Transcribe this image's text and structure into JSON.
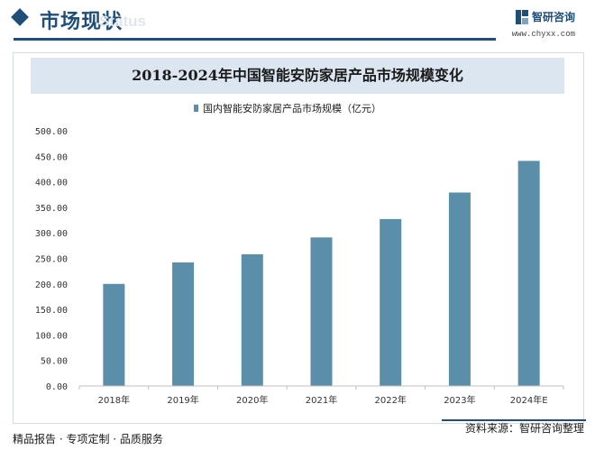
{
  "header": {
    "section_title": "市场现状",
    "section_watermark": "Status",
    "brand_name": "智研咨询",
    "brand_url": "www.chyxx.com"
  },
  "chart_data": {
    "type": "bar",
    "title": "2018-2024年中国智能安防家居产品市场规模变化",
    "categories": [
      "2018年",
      "2019年",
      "2020年",
      "2021年",
      "2022年",
      "2023年",
      "2024年E"
    ],
    "series": [
      {
        "name": "国内智能安防家居产品市场规模（亿元）",
        "values": [
          200,
          242,
          258,
          291,
          327,
          379,
          441
        ]
      }
    ],
    "ylim": [
      0,
      500
    ],
    "y_ticks": [
      "0.00",
      "50.00",
      "100.00",
      "150.00",
      "200.00",
      "250.00",
      "300.00",
      "350.00",
      "400.00",
      "450.00",
      "500.00"
    ],
    "grid": false,
    "legend_position": "top-left",
    "colors": {
      "bar": "#5b8ea8"
    }
  },
  "footer": {
    "left": "精品报告 · 专项定制 · 品质服务",
    "right": "资料来源：智研咨询整理"
  }
}
